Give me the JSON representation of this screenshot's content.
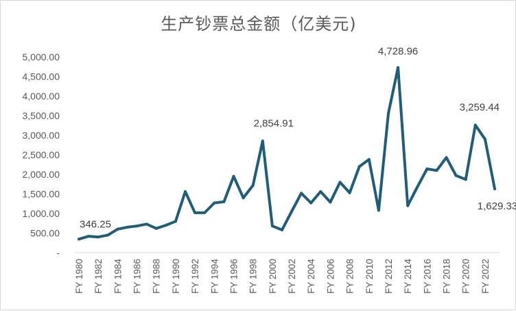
{
  "chart_data": {
    "type": "line",
    "title": "生产钞票总金额（亿美元)",
    "xlabel": "",
    "ylabel": "",
    "ylim": [
      0,
      5000
    ],
    "y_ticks": [
      0,
      500,
      1000,
      1500,
      2000,
      2500,
      3000,
      3500,
      4000,
      4500,
      5000
    ],
    "y_tick_labels": [
      "-",
      "500.00",
      "1,000.00",
      "1,500.00",
      "2,000.00",
      "2,500.00",
      "3,000.00",
      "3,500.00",
      "4,000.00",
      "4,500.00",
      "5,000.00"
    ],
    "grid": false,
    "legend": "none",
    "line_color": "#1f5d7a",
    "x": [
      "FY 1980",
      "FY 1981",
      "FY 1982",
      "FY 1983",
      "FY 1984",
      "FY 1985",
      "FY 1986",
      "FY 1987",
      "FY 1988",
      "FY 1989",
      "FY 1990",
      "FY 1991",
      "FY 1992",
      "FY 1993",
      "FY 1994",
      "FY 1995",
      "FY 1996",
      "FY 1997",
      "FY 1998",
      "FY 1999",
      "FY 2000",
      "FY 2001",
      "FY 2002",
      "FY 2003",
      "FY 2004",
      "FY 2005",
      "FY 2006",
      "FY 2007",
      "FY 2008",
      "FY 2009",
      "FY 2010",
      "FY 2011",
      "FY 2012",
      "FY 2013",
      "FY 2014",
      "FY 2015",
      "FY 2016",
      "FY 2017",
      "FY 2018",
      "FY 2019",
      "FY 2020",
      "FY 2021",
      "FY 2022",
      "FY 2023"
    ],
    "x_tick_labels": [
      "FY 1980",
      "FY 1982",
      "FY 1984",
      "FY 1986",
      "FY 1988",
      "FY 1990",
      "FY 1992",
      "FY 1994",
      "FY 1996",
      "FY 1998",
      "FY 2000",
      "FY 2002",
      "FY 2004",
      "FY 2006",
      "FY 2008",
      "FY 2010",
      "FY 2012",
      "FY 2014",
      "FY 2016",
      "FY 2018",
      "FY 2020",
      "FY 2022"
    ],
    "values": [
      346.25,
      420,
      400,
      450,
      600,
      650,
      680,
      730,
      620,
      700,
      800,
      1560,
      1020,
      1020,
      1270,
      1300,
      1950,
      1400,
      1720,
      2854.91,
      680,
      580,
      1050,
      1520,
      1270,
      1560,
      1290,
      1800,
      1530,
      2200,
      2380,
      1080,
      3560,
      4728.96,
      1200,
      1680,
      2140,
      2100,
      2430,
      1970,
      1870,
      3259.44,
      2900,
      1629.33
    ],
    "annotations": [
      {
        "index": 0,
        "text": "346.25"
      },
      {
        "index": 19,
        "text": "2,854.91"
      },
      {
        "index": 33,
        "text": "4,728.96"
      },
      {
        "index": 41,
        "text": "3,259.44"
      },
      {
        "index": 43,
        "text": "1,629.33"
      }
    ]
  }
}
